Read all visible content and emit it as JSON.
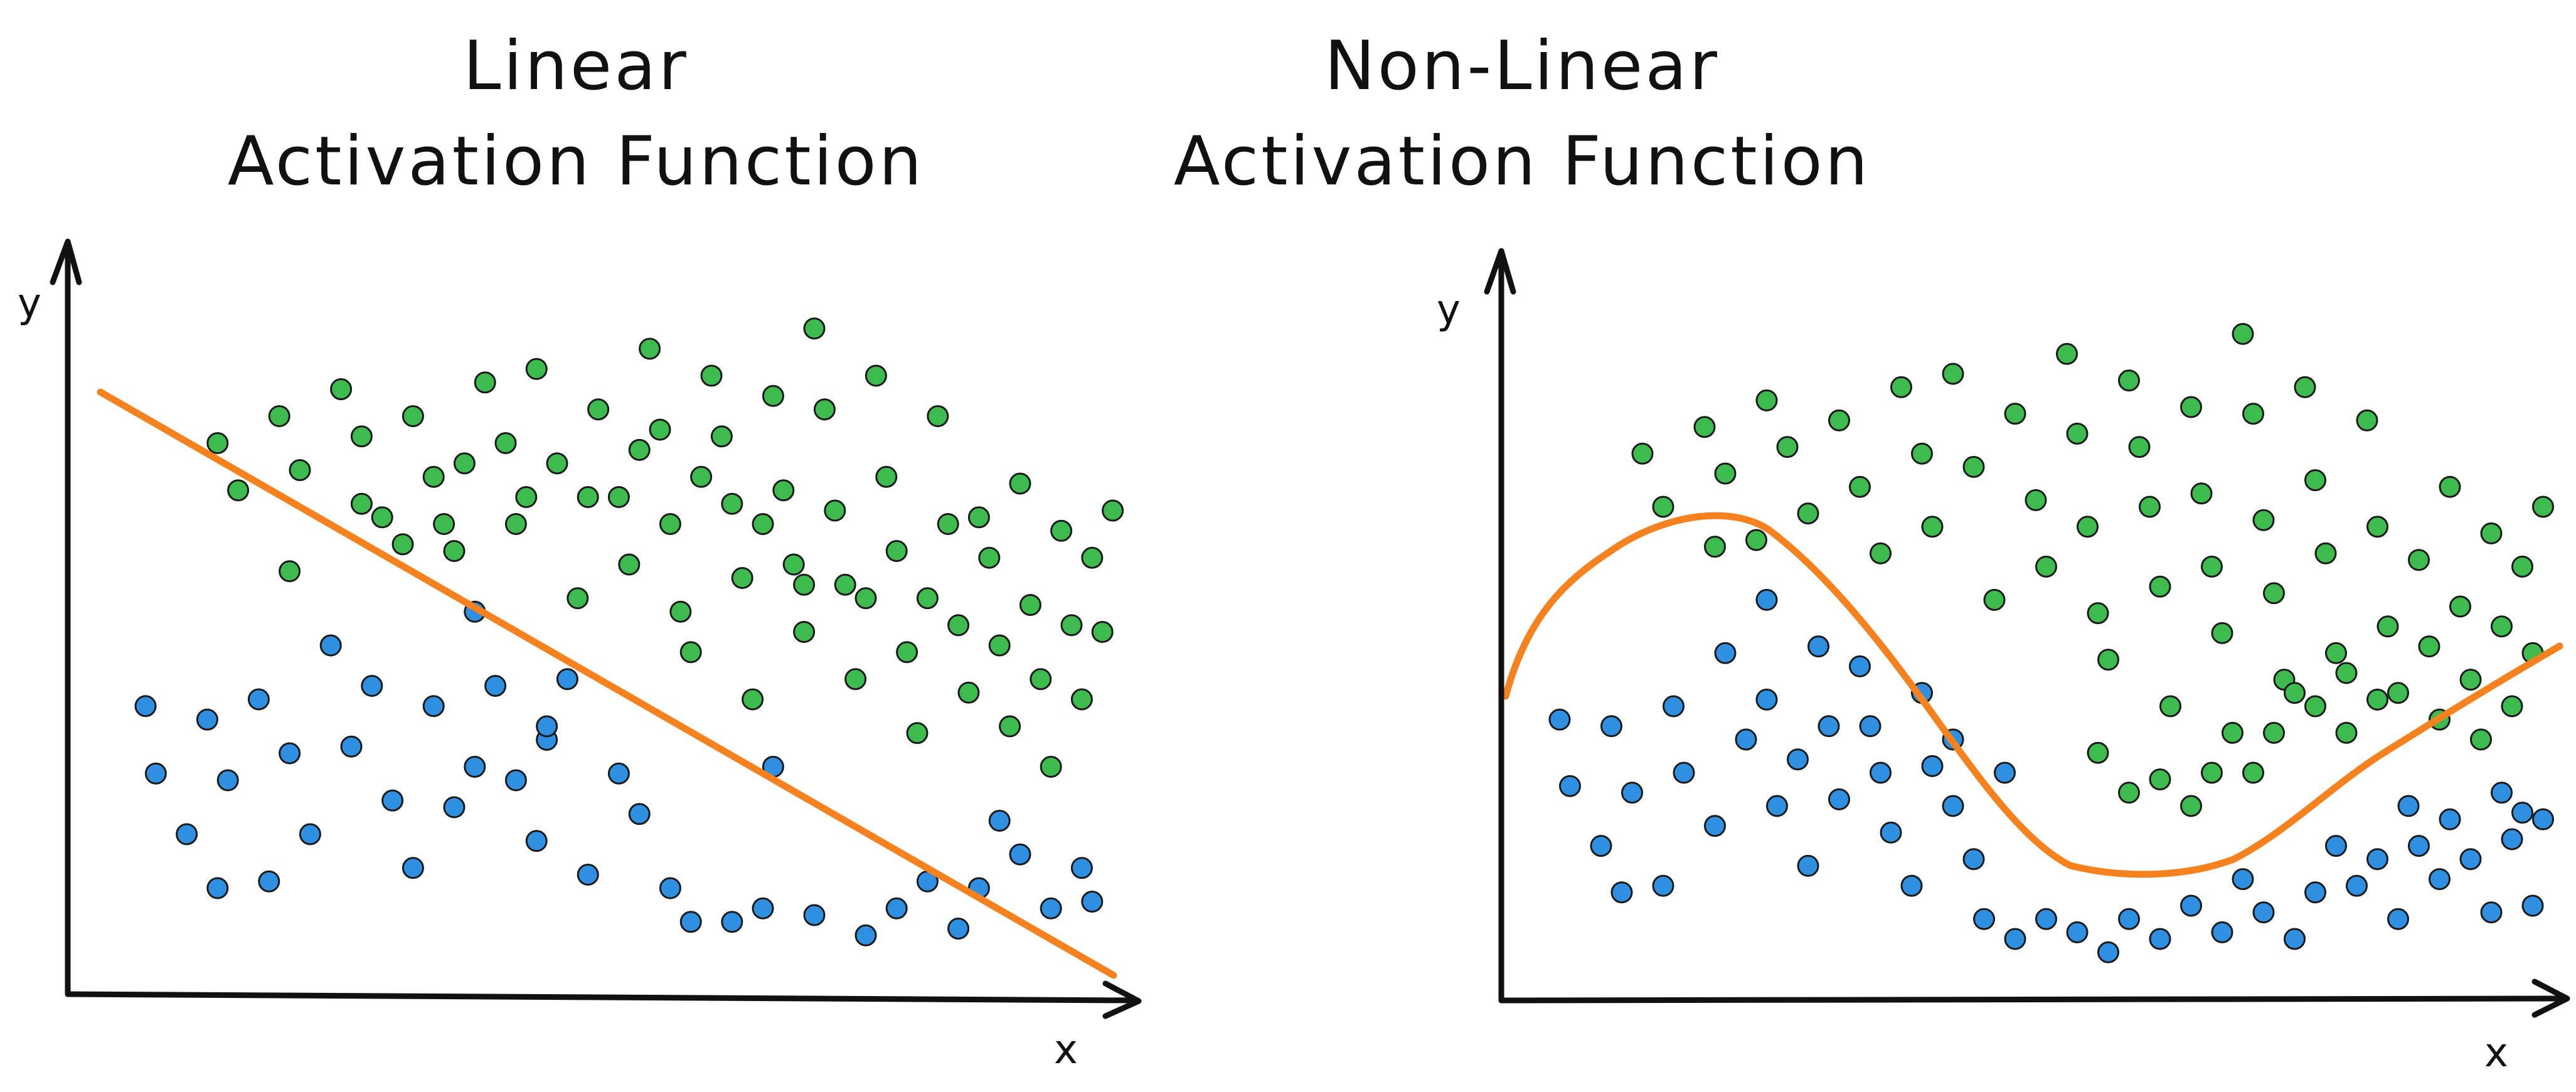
{
  "left": {
    "title_line1": "Linear",
    "title_line2": "Activation Function",
    "y_label": "y",
    "x_label": "x"
  },
  "right": {
    "title_line1": "Non-Linear",
    "title_line2": "Activation Function",
    "y_label": "y",
    "x_label": "x"
  },
  "colors": {
    "class_a": "#2f8fe0",
    "class_b": "#3dbb4f",
    "boundary": "#f5821f",
    "axis": "#111111"
  },
  "chart_data": [
    {
      "type": "scatter",
      "title": "Linear Activation Function",
      "xlabel": "x",
      "ylabel": "y",
      "boundary": "linear",
      "series": [
        {
          "values": [
            [
              0.05,
              0.39
            ],
            [
              0.06,
              0.29
            ],
            [
              0.09,
              0.2
            ],
            [
              0.12,
              0.12
            ],
            [
              0.11,
              0.37
            ],
            [
              0.13,
              0.28
            ],
            [
              0.17,
              0.13
            ],
            [
              0.16,
              0.4
            ],
            [
              0.19,
              0.32
            ],
            [
              0.21,
              0.2
            ],
            [
              0.23,
              0.48
            ],
            [
              0.25,
              0.33
            ],
            [
              0.27,
              0.42
            ],
            [
              0.29,
              0.25
            ],
            [
              0.31,
              0.15
            ],
            [
              0.33,
              0.39
            ],
            [
              0.35,
              0.24
            ],
            [
              0.37,
              0.53
            ],
            [
              0.37,
              0.3
            ],
            [
              0.39,
              0.42
            ],
            [
              0.41,
              0.28
            ],
            [
              0.43,
              0.19
            ],
            [
              0.44,
              0.34
            ],
            [
              0.46,
              0.43
            ],
            [
              0.48,
              0.14
            ],
            [
              0.51,
              0.29
            ],
            [
              0.53,
              0.23
            ],
            [
              0.56,
              0.12
            ],
            [
              0.58,
              0.07
            ],
            [
              0.62,
              0.07
            ],
            [
              0.65,
              0.09
            ],
            [
              0.7,
              0.08
            ],
            [
              0.75,
              0.05
            ],
            [
              0.78,
              0.09
            ],
            [
              0.81,
              0.13
            ],
            [
              0.84,
              0.06
            ],
            [
              0.86,
              0.12
            ],
            [
              0.88,
              0.22
            ],
            [
              0.9,
              0.17
            ],
            [
              0.93,
              0.09
            ],
            [
              0.96,
              0.15
            ],
            [
              0.97,
              0.1
            ],
            [
              0.44,
              0.36
            ],
            [
              0.66,
              0.3
            ]
          ]
        },
        {
          "values": [
            [
              0.12,
              0.78
            ],
            [
              0.14,
              0.71
            ],
            [
              0.18,
              0.82
            ],
            [
              0.2,
              0.74
            ],
            [
              0.24,
              0.86
            ],
            [
              0.26,
              0.79
            ],
            [
              0.28,
              0.67
            ],
            [
              0.31,
              0.82
            ],
            [
              0.33,
              0.73
            ],
            [
              0.35,
              0.62
            ],
            [
              0.38,
              0.87
            ],
            [
              0.4,
              0.78
            ],
            [
              0.41,
              0.66
            ],
            [
              0.43,
              0.89
            ],
            [
              0.45,
              0.75
            ],
            [
              0.47,
              0.55
            ],
            [
              0.49,
              0.83
            ],
            [
              0.51,
              0.7
            ],
            [
              0.52,
              0.6
            ],
            [
              0.54,
              0.92
            ],
            [
              0.55,
              0.8
            ],
            [
              0.56,
              0.66
            ],
            [
              0.57,
              0.53
            ],
            [
              0.58,
              0.47
            ],
            [
              0.6,
              0.88
            ],
            [
              0.61,
              0.79
            ],
            [
              0.62,
              0.69
            ],
            [
              0.63,
              0.58
            ],
            [
              0.64,
              0.4
            ],
            [
              0.66,
              0.85
            ],
            [
              0.67,
              0.71
            ],
            [
              0.68,
              0.6
            ],
            [
              0.69,
              0.5
            ],
            [
              0.7,
              0.95
            ],
            [
              0.71,
              0.83
            ],
            [
              0.72,
              0.68
            ],
            [
              0.73,
              0.57
            ],
            [
              0.74,
              0.43
            ],
            [
              0.76,
              0.88
            ],
            [
              0.77,
              0.73
            ],
            [
              0.78,
              0.62
            ],
            [
              0.79,
              0.47
            ],
            [
              0.8,
              0.35
            ],
            [
              0.82,
              0.82
            ],
            [
              0.83,
              0.66
            ],
            [
              0.84,
              0.51
            ],
            [
              0.85,
              0.41
            ],
            [
              0.87,
              0.61
            ],
            [
              0.88,
              0.48
            ],
            [
              0.89,
              0.36
            ],
            [
              0.9,
              0.72
            ],
            [
              0.91,
              0.54
            ],
            [
              0.92,
              0.43
            ],
            [
              0.93,
              0.3
            ],
            [
              0.94,
              0.65
            ],
            [
              0.95,
              0.51
            ],
            [
              0.96,
              0.4
            ],
            [
              0.97,
              0.61
            ],
            [
              0.98,
              0.5
            ],
            [
              0.99,
              0.68
            ],
            [
              0.19,
              0.59
            ],
            [
              0.26,
              0.69
            ],
            [
              0.3,
              0.63
            ],
            [
              0.34,
              0.66
            ],
            [
              0.36,
              0.75
            ],
            [
              0.42,
              0.7
            ],
            [
              0.48,
              0.7
            ],
            [
              0.53,
              0.77
            ],
            [
              0.59,
              0.73
            ],
            [
              0.65,
              0.66
            ],
            [
              0.69,
              0.57
            ],
            [
              0.75,
              0.55
            ],
            [
              0.81,
              0.55
            ],
            [
              0.86,
              0.67
            ]
          ]
        }
      ]
    },
    {
      "type": "scatter",
      "title": "Non-Linear Activation Function",
      "xlabel": "x",
      "ylabel": "y",
      "boundary": "non-linear",
      "series": [
        {
          "values": [
            [
              0.04,
              0.38
            ],
            [
              0.05,
              0.28
            ],
            [
              0.08,
              0.19
            ],
            [
              0.1,
              0.12
            ],
            [
              0.09,
              0.37
            ],
            [
              0.11,
              0.27
            ],
            [
              0.14,
              0.13
            ],
            [
              0.15,
              0.4
            ],
            [
              0.16,
              0.3
            ],
            [
              0.19,
              0.22
            ],
            [
              0.2,
              0.48
            ],
            [
              0.22,
              0.35
            ],
            [
              0.24,
              0.56
            ],
            [
              0.24,
              0.41
            ],
            [
              0.25,
              0.25
            ],
            [
              0.27,
              0.32
            ],
            [
              0.28,
              0.16
            ],
            [
              0.29,
              0.49
            ],
            [
              0.3,
              0.37
            ],
            [
              0.31,
              0.26
            ],
            [
              0.33,
              0.46
            ],
            [
              0.34,
              0.37
            ],
            [
              0.35,
              0.3
            ],
            [
              0.36,
              0.21
            ],
            [
              0.38,
              0.13
            ],
            [
              0.39,
              0.42
            ],
            [
              0.4,
              0.31
            ],
            [
              0.42,
              0.25
            ],
            [
              0.44,
              0.17
            ],
            [
              0.45,
              0.08
            ],
            [
              0.48,
              0.05
            ],
            [
              0.51,
              0.08
            ],
            [
              0.54,
              0.06
            ],
            [
              0.57,
              0.03
            ],
            [
              0.59,
              0.08
            ],
            [
              0.62,
              0.05
            ],
            [
              0.65,
              0.1
            ],
            [
              0.68,
              0.06
            ],
            [
              0.7,
              0.14
            ],
            [
              0.72,
              0.09
            ],
            [
              0.75,
              0.05
            ],
            [
              0.77,
              0.12
            ],
            [
              0.79,
              0.19
            ],
            [
              0.81,
              0.13
            ],
            [
              0.83,
              0.17
            ],
            [
              0.85,
              0.08
            ],
            [
              0.87,
              0.19
            ],
            [
              0.89,
              0.14
            ],
            [
              0.9,
              0.23
            ],
            [
              0.92,
              0.17
            ],
            [
              0.94,
              0.09
            ],
            [
              0.96,
              0.2
            ],
            [
              0.98,
              0.1
            ],
            [
              0.97,
              0.24
            ],
            [
              0.95,
              0.27
            ],
            [
              0.99,
              0.23
            ],
            [
              0.86,
              0.25
            ],
            [
              0.47,
              0.3
            ],
            [
              0.42,
              0.35
            ]
          ]
        },
        {
          "values": [
            [
              0.12,
              0.78
            ],
            [
              0.14,
              0.7
            ],
            [
              0.18,
              0.82
            ],
            [
              0.2,
              0.75
            ],
            [
              0.24,
              0.86
            ],
            [
              0.26,
              0.79
            ],
            [
              0.28,
              0.69
            ],
            [
              0.31,
              0.83
            ],
            [
              0.33,
              0.73
            ],
            [
              0.35,
              0.63
            ],
            [
              0.37,
              0.88
            ],
            [
              0.39,
              0.78
            ],
            [
              0.4,
              0.67
            ],
            [
              0.42,
              0.9
            ],
            [
              0.44,
              0.76
            ],
            [
              0.46,
              0.56
            ],
            [
              0.48,
              0.84
            ],
            [
              0.5,
              0.71
            ],
            [
              0.51,
              0.61
            ],
            [
              0.53,
              0.93
            ],
            [
              0.54,
              0.81
            ],
            [
              0.55,
              0.67
            ],
            [
              0.56,
              0.54
            ],
            [
              0.57,
              0.47
            ],
            [
              0.59,
              0.89
            ],
            [
              0.6,
              0.79
            ],
            [
              0.61,
              0.7
            ],
            [
              0.62,
              0.58
            ],
            [
              0.63,
              0.4
            ],
            [
              0.65,
              0.85
            ],
            [
              0.66,
              0.72
            ],
            [
              0.67,
              0.61
            ],
            [
              0.68,
              0.51
            ],
            [
              0.7,
              0.96
            ],
            [
              0.71,
              0.84
            ],
            [
              0.72,
              0.68
            ],
            [
              0.73,
              0.57
            ],
            [
              0.74,
              0.44
            ],
            [
              0.76,
              0.88
            ],
            [
              0.77,
              0.74
            ],
            [
              0.78,
              0.63
            ],
            [
              0.79,
              0.48
            ],
            [
              0.8,
              0.36
            ],
            [
              0.82,
              0.83
            ],
            [
              0.83,
              0.67
            ],
            [
              0.84,
              0.52
            ],
            [
              0.85,
              0.42
            ],
            [
              0.87,
              0.62
            ],
            [
              0.88,
              0.49
            ],
            [
              0.89,
              0.38
            ],
            [
              0.9,
              0.73
            ],
            [
              0.91,
              0.55
            ],
            [
              0.92,
              0.44
            ],
            [
              0.93,
              0.35
            ],
            [
              0.94,
              0.66
            ],
            [
              0.95,
              0.52
            ],
            [
              0.96,
              0.4
            ],
            [
              0.97,
              0.61
            ],
            [
              0.98,
              0.48
            ],
            [
              0.99,
              0.7
            ],
            [
              0.59,
              0.27
            ],
            [
              0.62,
              0.29
            ],
            [
              0.65,
              0.25
            ],
            [
              0.67,
              0.3
            ],
            [
              0.69,
              0.36
            ],
            [
              0.71,
              0.3
            ],
            [
              0.73,
              0.36
            ],
            [
              0.75,
              0.42
            ],
            [
              0.77,
              0.4
            ],
            [
              0.8,
              0.45
            ],
            [
              0.83,
              0.41
            ],
            [
              0.56,
              0.33
            ],
            [
              0.19,
              0.64
            ],
            [
              0.23,
              0.65
            ]
          ]
        }
      ]
    }
  ]
}
